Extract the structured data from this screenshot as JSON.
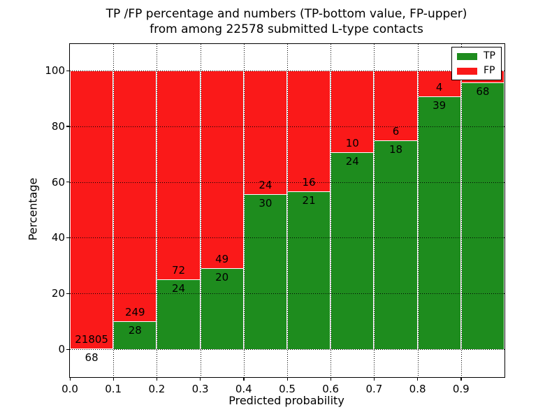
{
  "chart_data": {
    "type": "bar",
    "stacked": true,
    "percentage_scale": true,
    "title_line1": "TP /FP percentage and numbers (TP-bottom value, FP-upper)",
    "title_line2": "from among 22578 submitted L-type contacts",
    "total_submitted": 22578,
    "xlabel": "Predicted probability",
    "ylabel": "Percentage",
    "xlim": [
      0.0,
      1.0
    ],
    "ylim": [
      -10,
      110
    ],
    "grid": "dotted",
    "xtick_values": [
      0.0,
      0.1,
      0.2,
      0.3,
      0.4,
      0.5,
      0.6,
      0.7,
      0.8,
      0.9
    ],
    "xtick_labels": [
      "0.0",
      "0.1",
      "0.2",
      "0.3",
      "0.4",
      "0.5",
      "0.6",
      "0.7",
      "0.8",
      "0.9"
    ],
    "ytick_values": [
      0,
      20,
      40,
      60,
      80,
      100
    ],
    "ytick_labels": [
      "0",
      "20",
      "40",
      "60",
      "80",
      "100"
    ],
    "colors": {
      "tp": "#1e8c1e",
      "fp": "#fa1919",
      "bar_edge": "#ffffff",
      "grid": "#000000"
    },
    "legend": {
      "position": "upper-right",
      "entries": [
        {
          "label": "TP",
          "color": "#1e8c1e"
        },
        {
          "label": "FP",
          "color": "#fa1919"
        }
      ]
    },
    "bins": [
      {
        "range": [
          0.0,
          0.1
        ],
        "tp_count": 68,
        "fp_count": 21805,
        "tp_pct": 0.31
      },
      {
        "range": [
          0.1,
          0.2
        ],
        "tp_count": 28,
        "fp_count": 249,
        "tp_pct": 10.11
      },
      {
        "range": [
          0.2,
          0.3
        ],
        "tp_count": 24,
        "fp_count": 72,
        "tp_pct": 25.0
      },
      {
        "range": [
          0.3,
          0.4
        ],
        "tp_count": 20,
        "fp_count": 49,
        "tp_pct": 28.99
      },
      {
        "range": [
          0.4,
          0.5
        ],
        "tp_count": 30,
        "fp_count": 24,
        "tp_pct": 55.56
      },
      {
        "range": [
          0.5,
          0.6
        ],
        "tp_count": 21,
        "fp_count": 16,
        "tp_pct": 56.76
      },
      {
        "range": [
          0.6,
          0.7
        ],
        "tp_count": 24,
        "fp_count": 10,
        "tp_pct": 70.59
      },
      {
        "range": [
          0.7,
          0.8
        ],
        "tp_count": 18,
        "fp_count": 6,
        "tp_pct": 75.0
      },
      {
        "range": [
          0.8,
          0.9
        ],
        "tp_count": 39,
        "fp_count": 4,
        "tp_pct": 90.7
      },
      {
        "range": [
          0.9,
          1.0
        ],
        "tp_count": 68,
        "fp_count": null,
        "tp_pct": 95.77,
        "fp_label_hidden_by_legend": true
      }
    ]
  }
}
